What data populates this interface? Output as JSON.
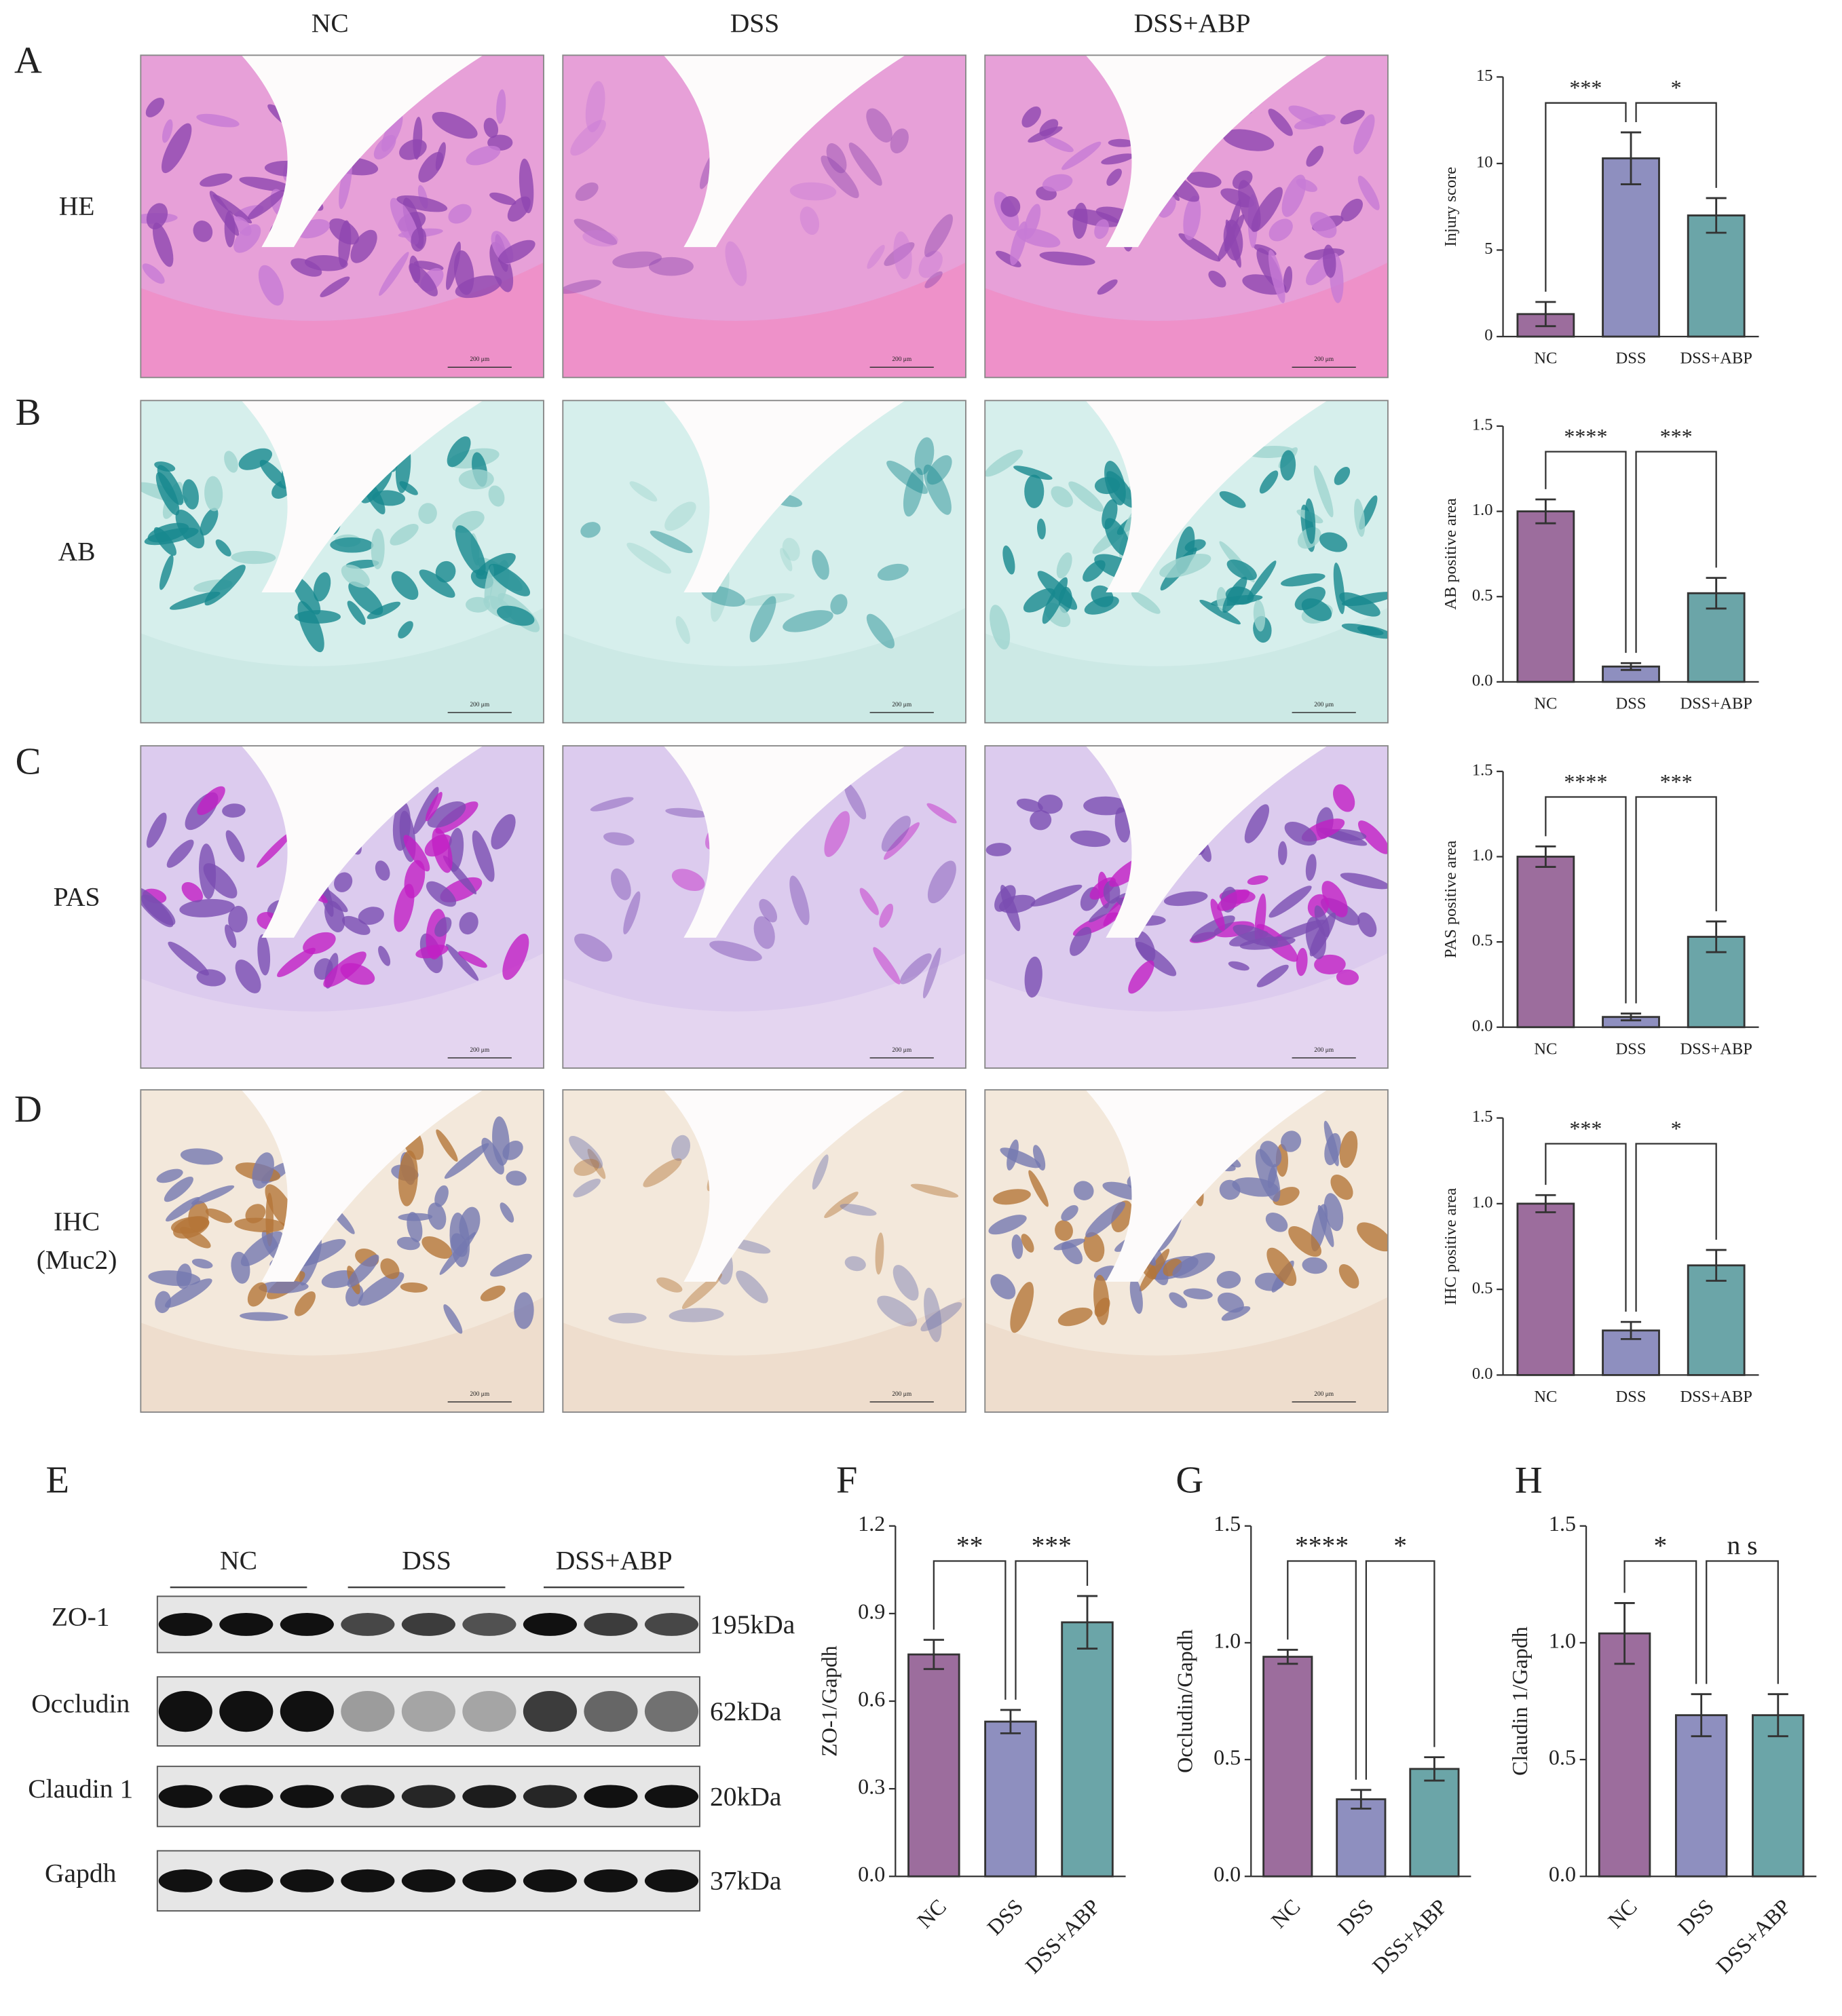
{
  "histology": {
    "columns": [
      "NC",
      "DSS",
      "DSS+ABP"
    ],
    "rows": [
      {
        "label": [
          "HE"
        ]
      },
      {
        "label": [
          "AB"
        ]
      },
      {
        "label": [
          "PAS"
        ]
      },
      {
        "label": [
          "IHC",
          "(Muc2)"
        ]
      }
    ],
    "scale_bar": "200 μm"
  },
  "western_blot": {
    "panel": "E",
    "groups": [
      "NC",
      "DSS",
      "DSS+ABP"
    ],
    "proteins": [
      "ZO-1",
      "Occludin",
      "Claudin 1",
      "Gapdh"
    ],
    "sizes": [
      "195kDa",
      "62kDa",
      "20kDa",
      "37kDa"
    ]
  },
  "chart_data": [
    {
      "type": "bar",
      "panel": "A",
      "ylabel": "Injury score",
      "categories": [
        "NC",
        "DSS",
        "DSS+ABP"
      ],
      "values": [
        1.3,
        10.3,
        7.0
      ],
      "errors": [
        0.7,
        1.5,
        1.0
      ],
      "colors": [
        "#9c6d9d",
        "#8e8fbf",
        "#6ba5a8"
      ],
      "ylim": [
        0,
        15
      ],
      "yticks": [
        0,
        5,
        10,
        15
      ],
      "significance": [
        "***",
        "*"
      ]
    },
    {
      "type": "bar",
      "panel": "B",
      "ylabel": "AB positive area",
      "categories": [
        "NC",
        "DSS",
        "DSS+ABP"
      ],
      "values": [
        1.0,
        0.09,
        0.52
      ],
      "errors": [
        0.07,
        0.02,
        0.09
      ],
      "colors": [
        "#9c6d9d",
        "#8e8fbf",
        "#6ba5a8"
      ],
      "ylim": [
        0,
        1.5
      ],
      "yticks": [
        {
          "value": 0,
          "label": "0.0"
        },
        0.5,
        {
          "value": 1,
          "label": "1.0"
        },
        1.5
      ],
      "significance": [
        "****",
        "***"
      ]
    },
    {
      "type": "bar",
      "panel": "C",
      "ylabel": "PAS positive area",
      "categories": [
        "NC",
        "DSS",
        "DSS+ABP"
      ],
      "values": [
        1.0,
        0.06,
        0.53
      ],
      "errors": [
        0.06,
        0.02,
        0.09
      ],
      "colors": [
        "#9c6d9d",
        "#8e8fbf",
        "#6ba5a8"
      ],
      "ylim": [
        0,
        1.5
      ],
      "yticks": [
        {
          "value": 0,
          "label": "0.0"
        },
        0.5,
        {
          "value": 1,
          "label": "1.0"
        },
        1.5
      ],
      "significance": [
        "****",
        "***"
      ]
    },
    {
      "type": "bar",
      "panel": "D",
      "ylabel": "IHC positive area",
      "categories": [
        "NC",
        "DSS",
        "DSS+ABP"
      ],
      "values": [
        1.0,
        0.26,
        0.64
      ],
      "errors": [
        0.05,
        0.05,
        0.09
      ],
      "colors": [
        "#9c6d9d",
        "#8e8fbf",
        "#6ba5a8"
      ],
      "ylim": [
        0,
        1.5
      ],
      "yticks": [
        {
          "value": 0,
          "label": "0.0"
        },
        0.5,
        {
          "value": 1,
          "label": "1.0"
        },
        1.5
      ],
      "significance": [
        "***",
        "*"
      ]
    },
    {
      "type": "bar",
      "panel": "F",
      "ylabel": "ZO-1/Gapdh",
      "categories": [
        "NC",
        "DSS",
        "DSS+ABP"
      ],
      "values": [
        0.76,
        0.53,
        0.87
      ],
      "errors": [
        0.05,
        0.04,
        0.09
      ],
      "colors": [
        "#9c6d9d",
        "#8e8fbf",
        "#6ba5a8"
      ],
      "ylim": [
        0,
        1.2
      ],
      "yticks": [
        {
          "value": 0,
          "label": "0.0"
        },
        0.3,
        0.6,
        0.9,
        1.2
      ],
      "significance": [
        "**",
        "***"
      ]
    },
    {
      "type": "bar",
      "panel": "G",
      "ylabel": "Occludin/Gapdh",
      "categories": [
        "NC",
        "DSS",
        "DSS+ABP"
      ],
      "values": [
        0.94,
        0.33,
        0.46
      ],
      "errors": [
        0.03,
        0.04,
        0.05
      ],
      "colors": [
        "#9c6d9d",
        "#8e8fbf",
        "#6ba5a8"
      ],
      "ylim": [
        0,
        1.5
      ],
      "yticks": [
        {
          "value": 0,
          "label": "0.0"
        },
        0.5,
        {
          "value": 1,
          "label": "1.0"
        },
        1.5
      ],
      "significance": [
        "****",
        "*"
      ]
    },
    {
      "type": "bar",
      "panel": "H",
      "ylabel": "Claudin 1/Gapdh",
      "categories": [
        "NC",
        "DSS",
        "DSS+ABP"
      ],
      "values": [
        1.04,
        0.69,
        0.69
      ],
      "errors": [
        0.13,
        0.09,
        0.09
      ],
      "colors": [
        "#9c6d9d",
        "#8e8fbf",
        "#6ba5a8"
      ],
      "ylim": [
        0,
        1.5
      ],
      "yticks": [
        {
          "value": 0,
          "label": "0.0"
        },
        0.5,
        {
          "value": 1,
          "label": "1.0"
        },
        1.5
      ],
      "significance": [
        "*",
        "n s"
      ]
    }
  ]
}
